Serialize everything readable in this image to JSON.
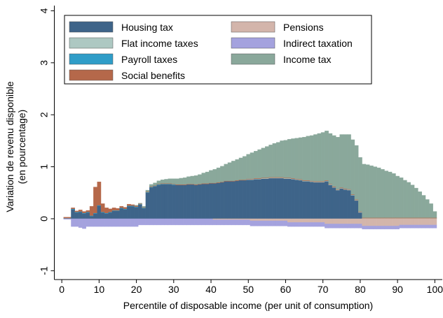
{
  "chart_data": {
    "type": "bar",
    "stacked": true,
    "xlabel": "Percentile of disposable income (per unit of consumption)",
    "ylabel": [
      "Variation de revenu disponible",
      "(en pourcentage)"
    ],
    "xlim": [
      -2,
      102
    ],
    "ylim": [
      -1.17,
      4.1
    ],
    "xticks": [
      0,
      10,
      20,
      30,
      40,
      50,
      60,
      70,
      80,
      90,
      100
    ],
    "yticks": [
      -1,
      0,
      1,
      2,
      3,
      4
    ],
    "legend_columns": 2,
    "x": [
      1,
      2,
      3,
      4,
      5,
      6,
      7,
      8,
      9,
      10,
      11,
      12,
      13,
      14,
      15,
      16,
      17,
      18,
      19,
      20,
      21,
      22,
      23,
      24,
      25,
      26,
      27,
      28,
      29,
      30,
      31,
      32,
      33,
      34,
      35,
      36,
      37,
      38,
      39,
      40,
      41,
      42,
      43,
      44,
      45,
      46,
      47,
      48,
      49,
      50,
      51,
      52,
      53,
      54,
      55,
      56,
      57,
      58,
      59,
      60,
      61,
      62,
      63,
      64,
      65,
      66,
      67,
      68,
      69,
      70,
      71,
      72,
      73,
      74,
      75,
      76,
      77,
      78,
      79,
      80,
      81,
      82,
      83,
      84,
      85,
      86,
      87,
      88,
      89,
      90,
      91,
      92,
      93,
      94,
      95,
      96,
      97,
      98,
      99,
      100
    ],
    "series": [
      {
        "name": "Housing tax",
        "color": "#3e6489",
        "values": [
          0,
          0,
          0.18,
          0.12,
          0.13,
          0.1,
          0.12,
          0.05,
          0.1,
          0.25,
          0.12,
          0.1,
          0.12,
          0.15,
          0.15,
          0.2,
          0.18,
          0.24,
          0.24,
          0.22,
          0.27,
          0.2,
          0.5,
          0.6,
          0.62,
          0.65,
          0.66,
          0.66,
          0.66,
          0.65,
          0.65,
          0.65,
          0.65,
          0.66,
          0.66,
          0.65,
          0.66,
          0.67,
          0.67,
          0.68,
          0.68,
          0.69,
          0.7,
          0.72,
          0.72,
          0.72,
          0.73,
          0.74,
          0.74,
          0.75,
          0.75,
          0.76,
          0.76,
          0.77,
          0.77,
          0.78,
          0.78,
          0.78,
          0.78,
          0.77,
          0.77,
          0.76,
          0.75,
          0.74,
          0.72,
          0.72,
          0.71,
          0.7,
          0.7,
          0.7,
          0.72,
          0.65,
          0.6,
          0.55,
          0.58,
          0.56,
          0.55,
          0.45,
          0.35,
          0.12,
          0,
          0,
          0,
          0,
          0,
          0,
          0,
          0,
          0,
          0,
          0,
          0,
          0,
          0,
          0,
          0,
          0,
          0,
          0,
          0
        ]
      },
      {
        "name": "Flat income taxes",
        "color": "#adc8c2",
        "values": [
          0,
          0,
          0,
          0,
          0,
          0,
          0,
          0,
          0,
          0,
          0,
          0,
          0,
          0,
          0,
          0,
          0,
          0,
          0,
          0,
          0,
          0,
          0,
          0,
          0,
          0,
          0,
          0,
          0,
          0,
          0,
          0,
          0,
          0,
          0,
          0,
          0,
          0,
          0,
          0,
          0,
          0,
          0,
          0,
          0,
          0,
          0,
          0,
          0,
          0.01,
          0.01,
          0.01,
          0.01,
          0.01,
          0.01,
          0.01,
          0.01,
          0.01,
          0.01,
          0.01,
          0.01,
          0.01,
          0.01,
          0.01,
          0.01,
          0.01,
          0.01,
          0.01,
          0.01,
          0.01,
          0.01,
          0.01,
          0.01,
          0.01,
          0.01,
          0.01,
          0.01,
          0.01,
          0.01,
          0.01,
          0.01,
          0.01,
          0.01,
          0.01,
          0.01,
          0.01,
          0.01,
          0.01,
          0.01,
          0.01,
          0.01,
          0.01,
          0.01,
          0.01,
          0.01,
          0.01,
          0.01,
          0.01,
          0.01,
          0.01
        ]
      },
      {
        "name": "Payroll taxes",
        "color": "#2f9dc8",
        "values": [
          0.01,
          0.01,
          0.01,
          0.01,
          0.01,
          0.01,
          0.01,
          0.01,
          0.01,
          0.01,
          0.01,
          0.01,
          0.01,
          0.01,
          0.01,
          0.01,
          0.01,
          0.01,
          0.01,
          0.01,
          0.01,
          0.01,
          0.01,
          0.01,
          0.01,
          0.01,
          0.01,
          0.01,
          0.01,
          0.01,
          0,
          0,
          0,
          0,
          0,
          0,
          0,
          0,
          0,
          0,
          0,
          0,
          0,
          0,
          0,
          0,
          0,
          0,
          0,
          0,
          0,
          0,
          0,
          0,
          0,
          0,
          0,
          0,
          0,
          0,
          0,
          0,
          0,
          0,
          0,
          0,
          0,
          0,
          0,
          0,
          0,
          0,
          0,
          0,
          0,
          0,
          0,
          0,
          0,
          0,
          0,
          0,
          0,
          0,
          0,
          0,
          0,
          0,
          0,
          0,
          0,
          0,
          0,
          0,
          0,
          0,
          0,
          0,
          0,
          0
        ]
      },
      {
        "name": "Social benefits",
        "color": "#b5684a",
        "values": [
          0.02,
          0.02,
          0.02,
          0.02,
          0.03,
          0.03,
          0.03,
          0.18,
          0.5,
          0.45,
          0.16,
          0.1,
          0.06,
          0.05,
          0.04,
          0.03,
          0.03,
          0.03,
          0.02,
          0.02,
          0.01,
          0.01,
          0.01,
          0.01,
          0.01,
          0.01,
          0.01,
          0.01,
          0.01,
          0.01,
          0.01,
          0.01,
          0.01,
          0.01,
          0.01,
          0.01,
          0.01,
          0.01,
          0.01,
          0.01,
          0.01,
          0.01,
          0.01,
          0.01,
          0.01,
          0.01,
          0.01,
          0.01,
          0.01,
          0.01,
          0.01,
          0.01,
          0.01,
          0.01,
          0.01,
          0.01,
          0.01,
          0.01,
          0.01,
          0.01,
          0.01,
          0.01,
          0.01,
          0.01,
          0.01,
          0.01,
          0.01,
          0.01,
          0.01,
          0.01,
          0.01,
          0.01,
          0.01,
          0.01,
          0.01,
          0.01,
          0.01,
          0.01,
          0.01,
          0.01,
          0.01,
          0.01,
          0.01,
          0.01,
          0.01,
          0.01,
          0.01,
          0.01,
          0.01,
          0.01,
          0.01,
          0.01,
          0.01,
          0.01,
          0.01,
          0.01,
          0.01,
          0.01,
          0.01,
          0.01
        ]
      },
      {
        "name": "Pensions",
        "color": "#d3b5ab",
        "values": [
          0,
          0,
          0,
          0,
          0,
          0,
          0,
          0,
          0,
          0,
          0,
          0,
          0,
          0,
          0,
          0,
          0,
          0,
          0,
          0,
          0,
          0,
          0,
          0,
          0,
          0,
          0,
          0,
          0,
          0,
          0,
          0,
          0,
          0,
          0,
          0,
          0,
          0,
          0,
          0,
          -0.02,
          -0.02,
          -0.02,
          -0.02,
          -0.02,
          -0.02,
          -0.02,
          -0.02,
          -0.02,
          -0.02,
          -0.04,
          -0.04,
          -0.04,
          -0.04,
          -0.04,
          -0.04,
          -0.04,
          -0.04,
          -0.04,
          -0.04,
          -0.07,
          -0.07,
          -0.07,
          -0.07,
          -0.07,
          -0.07,
          -0.07,
          -0.07,
          -0.07,
          -0.07,
          -0.1,
          -0.1,
          -0.1,
          -0.1,
          -0.1,
          -0.1,
          -0.1,
          -0.1,
          -0.1,
          -0.1,
          -0.14,
          -0.14,
          -0.14,
          -0.14,
          -0.14,
          -0.14,
          -0.14,
          -0.14,
          -0.14,
          -0.14,
          -0.12,
          -0.12,
          -0.12,
          -0.12,
          -0.12,
          -0.12,
          -0.12,
          -0.12,
          -0.12,
          -0.12
        ]
      },
      {
        "name": "Indirect taxation",
        "color": "#a4a2de",
        "values": [
          -0.01,
          -0.01,
          -0.15,
          -0.15,
          -0.17,
          -0.19,
          -0.15,
          -0.15,
          -0.15,
          -0.15,
          -0.15,
          -0.15,
          -0.15,
          -0.15,
          -0.15,
          -0.15,
          -0.15,
          -0.15,
          -0.15,
          -0.15,
          -0.12,
          -0.12,
          -0.12,
          -0.12,
          -0.12,
          -0.12,
          -0.12,
          -0.12,
          -0.12,
          -0.12,
          -0.12,
          -0.12,
          -0.12,
          -0.12,
          -0.12,
          -0.12,
          -0.12,
          -0.12,
          -0.12,
          -0.12,
          -0.1,
          -0.1,
          -0.1,
          -0.1,
          -0.1,
          -0.1,
          -0.1,
          -0.1,
          -0.1,
          -0.1,
          -0.1,
          -0.1,
          -0.1,
          -0.1,
          -0.1,
          -0.1,
          -0.1,
          -0.1,
          -0.1,
          -0.1,
          -0.08,
          -0.08,
          -0.08,
          -0.08,
          -0.08,
          -0.08,
          -0.08,
          -0.08,
          -0.08,
          -0.08,
          -0.08,
          -0.08,
          -0.08,
          -0.08,
          -0.08,
          -0.08,
          -0.08,
          -0.08,
          -0.08,
          -0.08,
          -0.06,
          -0.06,
          -0.06,
          -0.06,
          -0.06,
          -0.06,
          -0.06,
          -0.06,
          -0.06,
          -0.06,
          -0.06,
          -0.06,
          -0.06,
          -0.06,
          -0.06,
          -0.06,
          -0.06,
          -0.06,
          -0.06,
          -0.06
        ]
      },
      {
        "name": "Income tax",
        "color": "#8aa89b",
        "values": [
          0,
          0,
          0,
          0,
          0,
          0,
          0,
          0,
          0,
          0,
          0,
          0,
          0,
          0,
          0,
          0,
          0,
          0,
          0,
          0.01,
          0.01,
          0.02,
          0.03,
          0.04,
          0.05,
          0.06,
          0.07,
          0.08,
          0.09,
          0.1,
          0.11,
          0.12,
          0.13,
          0.14,
          0.15,
          0.17,
          0.18,
          0.2,
          0.22,
          0.24,
          0.26,
          0.28,
          0.3,
          0.32,
          0.35,
          0.38,
          0.4,
          0.42,
          0.45,
          0.47,
          0.5,
          0.52,
          0.55,
          0.57,
          0.6,
          0.62,
          0.65,
          0.67,
          0.7,
          0.72,
          0.74,
          0.76,
          0.78,
          0.8,
          0.83,
          0.85,
          0.87,
          0.9,
          0.92,
          0.94,
          0.95,
          0.97,
          0.98,
          1.0,
          1.02,
          1.04,
          1.05,
          1.05,
          1.04,
          1.04,
          1.03,
          1.02,
          1.0,
          0.98,
          0.96,
          0.93,
          0.9,
          0.88,
          0.85,
          0.8,
          0.77,
          0.72,
          0.68,
          0.63,
          0.57,
          0.5,
          0.43,
          0.35,
          0.27,
          0.12
        ]
      }
    ]
  }
}
